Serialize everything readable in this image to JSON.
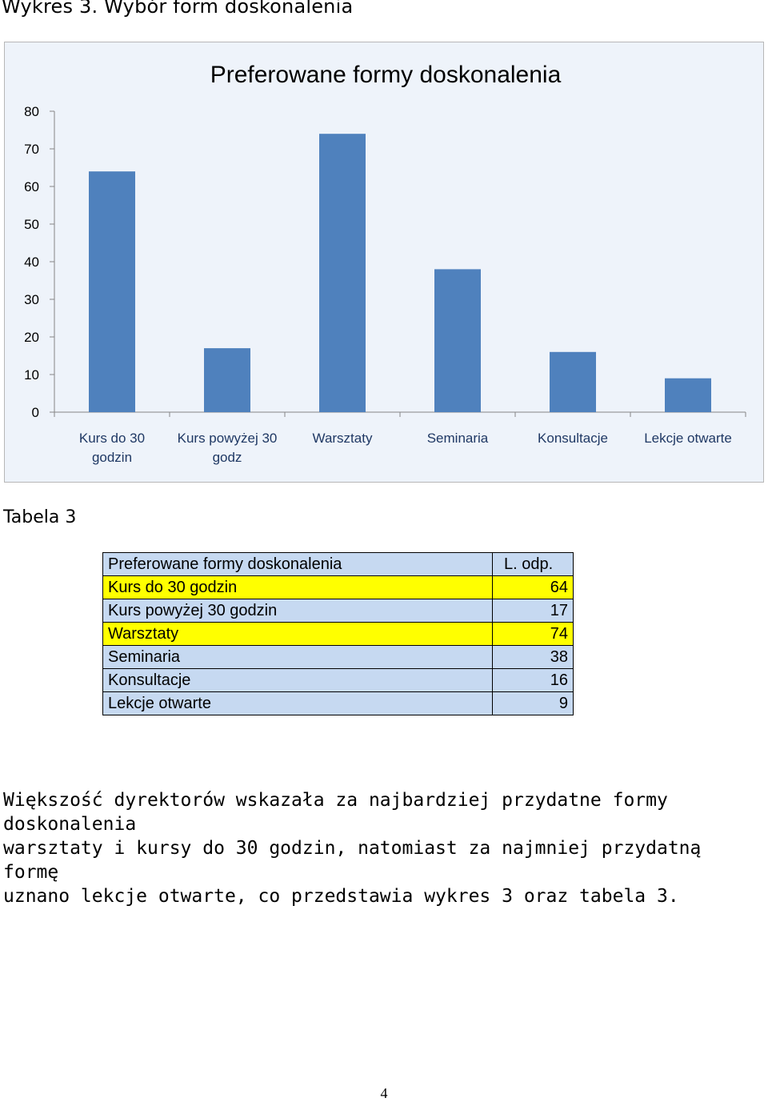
{
  "caption": "Wykres 3. Wybór form doskonalenia",
  "chart_data": {
    "type": "bar",
    "title": "Preferowane formy doskonalenia",
    "categories": [
      [
        "Kurs do 30",
        "godzin"
      ],
      [
        "Kurs powyżej 30",
        "godz"
      ],
      [
        "Warsztaty"
      ],
      [
        "Seminaria"
      ],
      [
        "Konsultacje"
      ],
      [
        "Lekcje otwarte"
      ]
    ],
    "values": [
      64,
      17,
      74,
      38,
      16,
      9
    ],
    "yticks": [
      "0",
      "10",
      "20",
      "30",
      "40",
      "50",
      "60",
      "70",
      "80"
    ],
    "ylim": [
      0,
      80
    ],
    "grid": false,
    "bar_color": "#4f81bd"
  },
  "table_title": "Tabela 3",
  "table": {
    "header": [
      "Preferowane formy doskonalenia",
      "L. odp."
    ],
    "rows": [
      {
        "label": "Kurs do 30 godzin",
        "value": "64",
        "color": "#ffff00"
      },
      {
        "label": "Kurs powyżej 30 godzin",
        "value": "17",
        "color": "#c6d9f1"
      },
      {
        "label": "Warsztaty",
        "value": "74",
        "color": "#ffff00"
      },
      {
        "label": "Seminaria",
        "value": "38",
        "color": "#c6d9f1"
      },
      {
        "label": "Konsultacje",
        "value": "16",
        "color": "#c6d9f1"
      },
      {
        "label": "Lekcje otwarte",
        "value": "9",
        "color": "#c6d9f1"
      }
    ]
  },
  "paragraph": "Większość dyrektorów wskazała za najbardziej przydatne formy doskonalenia\nwarsztaty i kursy do 30 godzin, natomiast za najmniej przydatną formę\nuznano lekcje otwarte, co przedstawia wykres 3 oraz tabela 3.",
  "page_number": "4"
}
